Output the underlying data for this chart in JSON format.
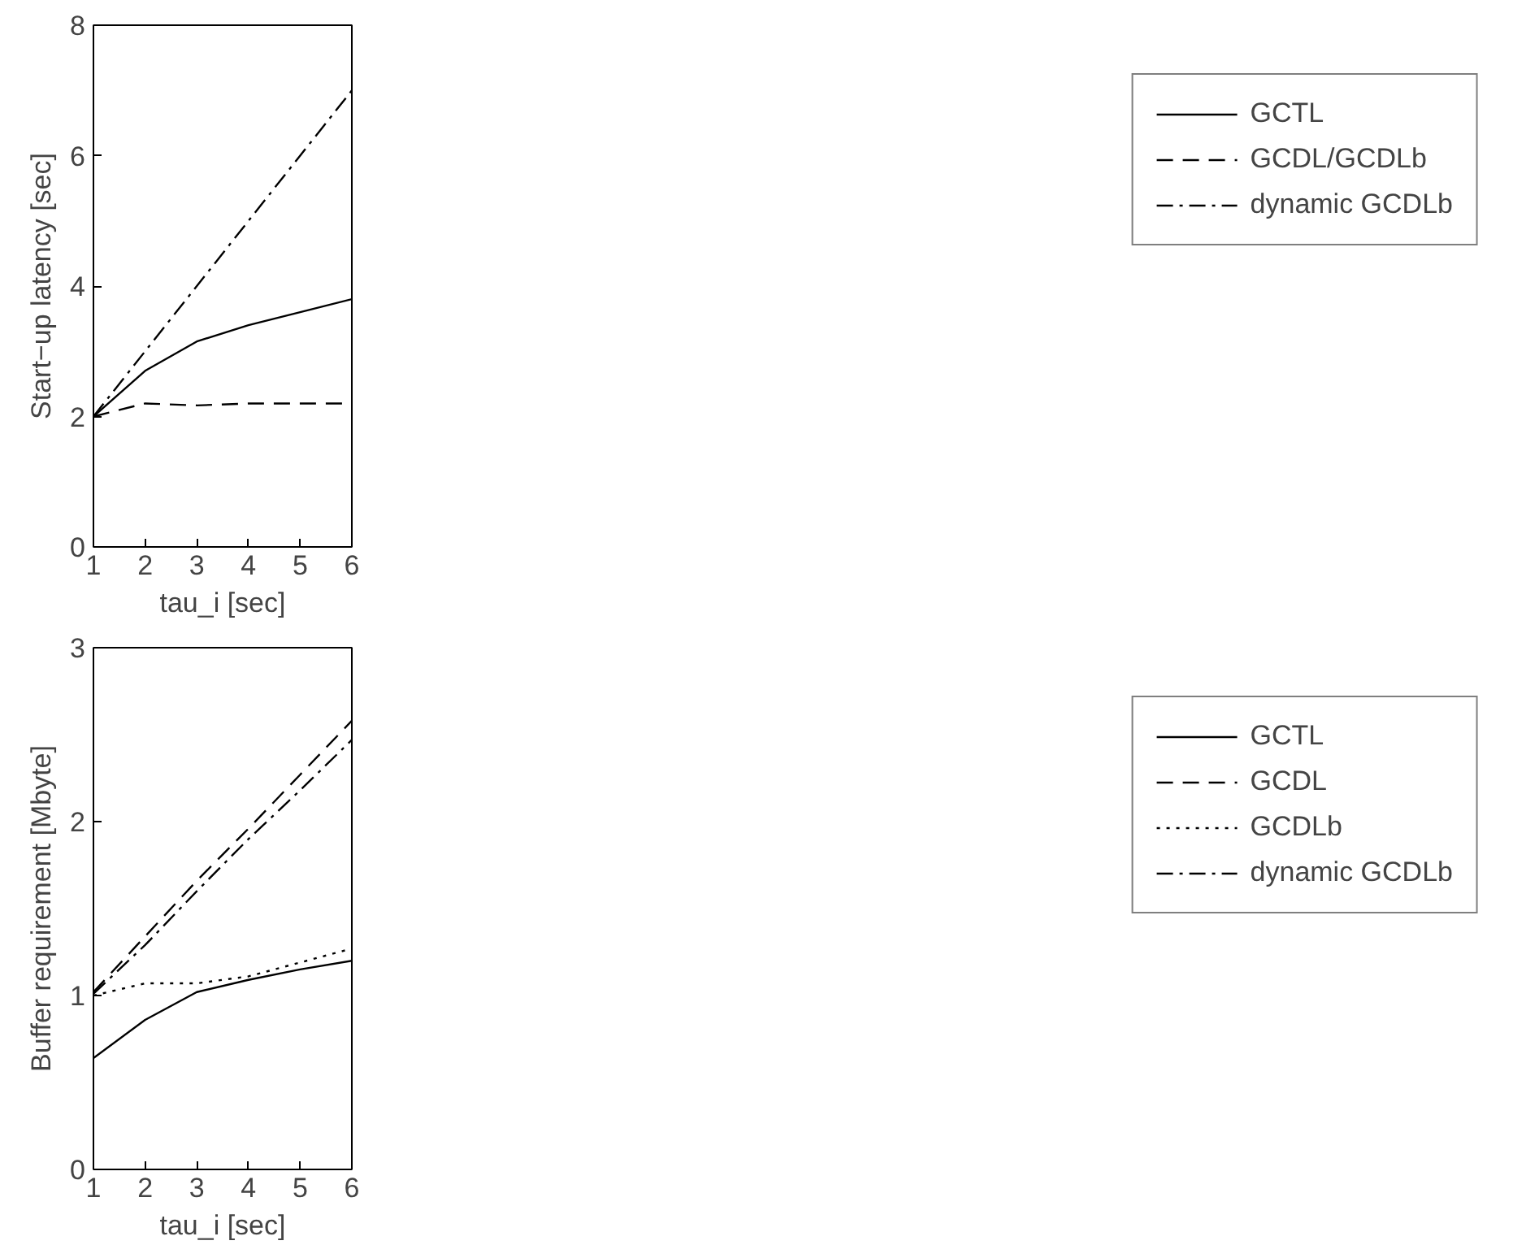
{
  "chart_data": [
    {
      "type": "line",
      "xlabel": "tau_i [sec]",
      "ylabel": "Start−up latency [sec]",
      "x": [
        1,
        2,
        3,
        4,
        5,
        6
      ],
      "xlim": [
        1,
        6
      ],
      "xticks": [
        1,
        2,
        3,
        4,
        5,
        6
      ],
      "ylim": [
        0,
        8
      ],
      "yticks": [
        0,
        2,
        4,
        6,
        8
      ],
      "grid": false,
      "legend": "right",
      "series": [
        {
          "name": "GCTL",
          "color": "#000000",
          "line_style": "solid",
          "values": [
            2,
            2.7,
            3.15,
            3.4,
            3.6,
            3.8
          ]
        },
        {
          "name": "GCDL/GCDLb",
          "color": "#000000",
          "line_style": "dashed",
          "values": [
            2,
            2.2,
            2.17,
            2.2,
            2.2,
            2.2
          ]
        },
        {
          "name": "dynamic GCDLb",
          "color": "#000000",
          "line_style": "dashdot",
          "values": [
            2,
            3,
            4,
            5,
            6,
            7
          ]
        }
      ]
    },
    {
      "type": "line",
      "xlabel": "tau_i [sec]",
      "ylabel": "Buffer requirement [Mbyte]",
      "x": [
        1,
        2,
        3,
        4,
        5,
        6
      ],
      "xlim": [
        1,
        6
      ],
      "xticks": [
        1,
        2,
        3,
        4,
        5,
        6
      ],
      "ylim": [
        0,
        3
      ],
      "yticks": [
        0,
        1,
        2,
        3
      ],
      "grid": false,
      "legend": "right",
      "series": [
        {
          "name": "GCTL",
          "color": "#000000",
          "line_style": "solid",
          "values": [
            0.64,
            0.86,
            1.02,
            1.09,
            1.15,
            1.2
          ]
        },
        {
          "name": "GCDL",
          "color": "#000000",
          "line_style": "dashed",
          "values": [
            1.02,
            1.34,
            1.66,
            1.96,
            2.27,
            2.58
          ]
        },
        {
          "name": "GCDLb",
          "color": "#000000",
          "line_style": "dotted",
          "values": [
            1.0,
            1.07,
            1.07,
            1.11,
            1.19,
            1.27
          ]
        },
        {
          "name": "dynamic GCDLb",
          "color": "#000000",
          "line_style": "dashdot",
          "values": [
            1.01,
            1.29,
            1.6,
            1.9,
            2.18,
            2.47
          ]
        }
      ]
    }
  ]
}
